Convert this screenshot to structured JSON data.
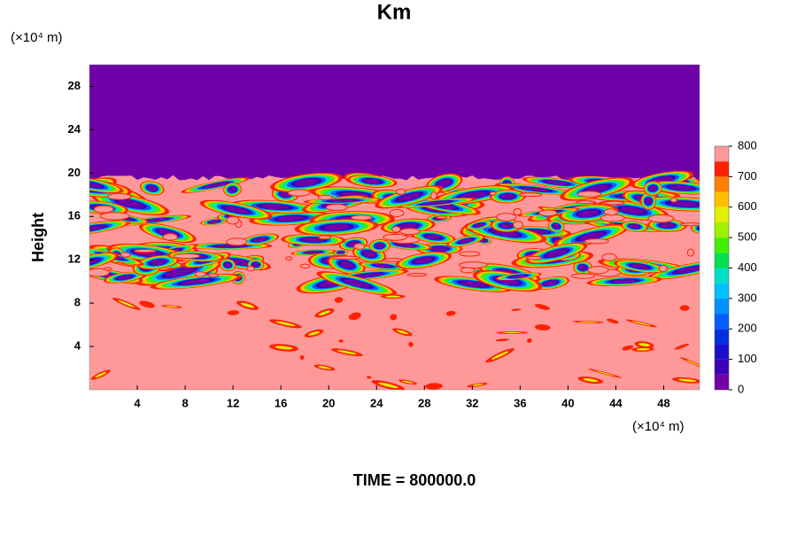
{
  "chart_data": {
    "type": "contour",
    "title": "Km",
    "x_unit": "(×10⁴ m)",
    "y_unit": "(×10⁴ m)",
    "y_label": "Height",
    "footer": "TIME = 800000.0",
    "xlim": [
      0,
      51
    ],
    "ylim": [
      0,
      30
    ],
    "xticks": [
      4,
      8,
      12,
      16,
      20,
      24,
      28,
      32,
      36,
      40,
      44,
      48
    ],
    "yticks": [
      4,
      8,
      12,
      16,
      20,
      24,
      28
    ],
    "colorbar": {
      "levels": [
        0,
        50,
        100,
        150,
        200,
        250,
        300,
        350,
        400,
        450,
        500,
        550,
        600,
        650,
        700,
        750,
        800
      ],
      "colors": [
        "#7000a8",
        "#3c00b8",
        "#1a10cc",
        "#0030e0",
        "#0060ff",
        "#0090ff",
        "#00c0ff",
        "#00e0c8",
        "#00e050",
        "#40f000",
        "#a0f000",
        "#e0f000",
        "#ffc000",
        "#ff8000",
        "#ff2000",
        "#ff9999"
      ],
      "ticks": [
        0,
        100,
        200,
        300,
        400,
        500,
        600,
        700,
        800
      ]
    }
  }
}
